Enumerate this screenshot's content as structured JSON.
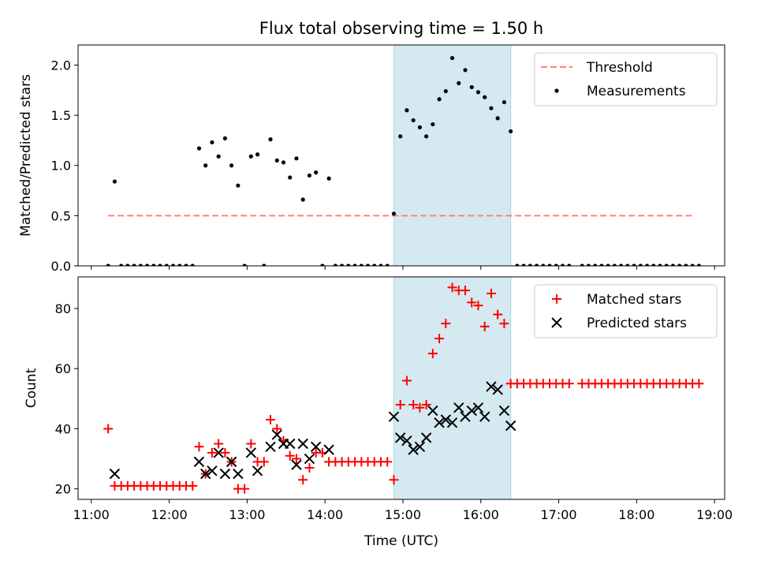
{
  "chart_data": {
    "type": "scatter",
    "title": "Flux total observing time = 1.50 h",
    "xlabel": "Time (UTC)",
    "x_unit": "hours UTC",
    "xlim": [
      "11:00",
      "19:00"
    ],
    "x_ticks": [
      "11:00",
      "12:00",
      "13:00",
      "14:00",
      "15:00",
      "16:00",
      "17:00",
      "18:00",
      "19:00"
    ],
    "shaded_interval": {
      "start": "14:53",
      "end": "16:23",
      "color": "#d4eaf0"
    },
    "panels": [
      {
        "ylabel": "Matched/Predicted stars",
        "ylim": [
          0,
          2.2
        ],
        "y_ticks": [
          "0.0",
          "0.5",
          "1.0",
          "1.5",
          "2.0"
        ],
        "legend": {
          "placement": "upper right",
          "entries": [
            "Threshold",
            "Measurements"
          ]
        },
        "series": [
          {
            "name": "Threshold",
            "kind": "dashed-line",
            "color": "#ff7f7f",
            "x": [
              "11:13",
              "18:43"
            ],
            "y": [
              0.5,
              0.5
            ]
          },
          {
            "name": "Measurements",
            "kind": "dot",
            "color": "#000000",
            "points": [
              [
                "11:13",
                0
              ],
              [
                "11:18",
                0.84
              ],
              [
                "11:23",
                0
              ],
              [
                "11:28",
                0
              ],
              [
                "11:33",
                0
              ],
              [
                "11:38",
                0
              ],
              [
                "11:43",
                0
              ],
              [
                "11:48",
                0
              ],
              [
                "11:53",
                0
              ],
              [
                "11:58",
                0
              ],
              [
                "12:03",
                0
              ],
              [
                "12:08",
                0
              ],
              [
                "12:13",
                0
              ],
              [
                "12:18",
                0
              ],
              [
                "12:23",
                1.17
              ],
              [
                "12:28",
                1.0
              ],
              [
                "12:33",
                1.23
              ],
              [
                "12:38",
                1.09
              ],
              [
                "12:43",
                1.27
              ],
              [
                "12:48",
                1.0
              ],
              [
                "12:53",
                0.8
              ],
              [
                "12:58",
                0
              ],
              [
                "13:03",
                1.09
              ],
              [
                "13:08",
                1.11
              ],
              [
                "13:13",
                0
              ],
              [
                "13:18",
                1.26
              ],
              [
                "13:23",
                1.05
              ],
              [
                "13:28",
                1.03
              ],
              [
                "13:33",
                0.88
              ],
              [
                "13:38",
                1.07
              ],
              [
                "13:43",
                0.66
              ],
              [
                "13:48",
                0.9
              ],
              [
                "13:53",
                0.93
              ],
              [
                "13:58",
                0
              ],
              [
                "14:03",
                0.87
              ],
              [
                "14:08",
                0
              ],
              [
                "14:13",
                0
              ],
              [
                "14:18",
                0
              ],
              [
                "14:23",
                0
              ],
              [
                "14:28",
                0
              ],
              [
                "14:33",
                0
              ],
              [
                "14:38",
                0
              ],
              [
                "14:43",
                0
              ],
              [
                "14:48",
                0
              ],
              [
                "14:53",
                0.52
              ],
              [
                "14:58",
                1.29
              ],
              [
                "15:03",
                1.55
              ],
              [
                "15:08",
                1.45
              ],
              [
                "15:13",
                1.38
              ],
              [
                "15:18",
                1.29
              ],
              [
                "15:23",
                1.41
              ],
              [
                "15:28",
                1.66
              ],
              [
                "15:33",
                1.74
              ],
              [
                "15:38",
                2.07
              ],
              [
                "15:43",
                1.82
              ],
              [
                "15:48",
                1.95
              ],
              [
                "15:53",
                1.78
              ],
              [
                "15:58",
                1.73
              ],
              [
                "16:03",
                1.68
              ],
              [
                "16:08",
                1.57
              ],
              [
                "16:13",
                1.47
              ],
              [
                "16:18",
                1.63
              ],
              [
                "16:23",
                1.34
              ],
              [
                "16:28",
                0
              ],
              [
                "16:33",
                0
              ],
              [
                "16:38",
                0
              ],
              [
                "16:43",
                0
              ],
              [
                "16:48",
                0
              ],
              [
                "16:53",
                0
              ],
              [
                "16:58",
                0
              ],
              [
                "17:03",
                0
              ],
              [
                "17:08",
                0
              ],
              [
                "17:18",
                0
              ],
              [
                "17:23",
                0
              ],
              [
                "17:28",
                0
              ],
              [
                "17:33",
                0
              ],
              [
                "17:38",
                0
              ],
              [
                "17:43",
                0
              ],
              [
                "17:48",
                0
              ],
              [
                "17:53",
                0
              ],
              [
                "17:58",
                0
              ],
              [
                "18:03",
                0
              ],
              [
                "18:08",
                0
              ],
              [
                "18:13",
                0
              ],
              [
                "18:18",
                0
              ],
              [
                "18:23",
                0
              ],
              [
                "18:28",
                0
              ],
              [
                "18:33",
                0
              ],
              [
                "18:38",
                0
              ],
              [
                "18:43",
                0
              ],
              [
                "18:48",
                0
              ]
            ]
          }
        ]
      },
      {
        "ylabel": "Count",
        "ylim": [
          16.5,
          90.5
        ],
        "y_ticks": [
          "20",
          "40",
          "60",
          "80"
        ],
        "legend": {
          "placement": "upper right",
          "entries": [
            "Matched stars",
            "Predicted stars"
          ]
        },
        "series": [
          {
            "name": "Matched stars",
            "kind": "plus",
            "color": "#ff0000",
            "points": [
              [
                "11:13",
                40
              ],
              [
                "11:18",
                21
              ],
              [
                "11:23",
                21
              ],
              [
                "11:28",
                21
              ],
              [
                "11:33",
                21
              ],
              [
                "11:38",
                21
              ],
              [
                "11:43",
                21
              ],
              [
                "11:48",
                21
              ],
              [
                "11:53",
                21
              ],
              [
                "11:58",
                21
              ],
              [
                "12:03",
                21
              ],
              [
                "12:08",
                21
              ],
              [
                "12:13",
                21
              ],
              [
                "12:18",
                21
              ],
              [
                "12:23",
                34
              ],
              [
                "12:28",
                25
              ],
              [
                "12:33",
                32
              ],
              [
                "12:38",
                35
              ],
              [
                "12:43",
                32
              ],
              [
                "12:48",
                29
              ],
              [
                "12:53",
                20
              ],
              [
                "12:58",
                20
              ],
              [
                "13:03",
                35
              ],
              [
                "13:08",
                29
              ],
              [
                "13:13",
                29
              ],
              [
                "13:18",
                43
              ],
              [
                "13:23",
                40
              ],
              [
                "13:28",
                36
              ],
              [
                "13:33",
                31
              ],
              [
                "13:38",
                30
              ],
              [
                "13:43",
                23
              ],
              [
                "13:48",
                27
              ],
              [
                "13:53",
                32
              ],
              [
                "13:58",
                32
              ],
              [
                "14:03",
                29
              ],
              [
                "14:08",
                29
              ],
              [
                "14:13",
                29
              ],
              [
                "14:18",
                29
              ],
              [
                "14:23",
                29
              ],
              [
                "14:28",
                29
              ],
              [
                "14:33",
                29
              ],
              [
                "14:38",
                29
              ],
              [
                "14:43",
                29
              ],
              [
                "14:48",
                29
              ],
              [
                "14:53",
                23
              ],
              [
                "14:58",
                48
              ],
              [
                "15:03",
                56
              ],
              [
                "15:08",
                48
              ],
              [
                "15:13",
                47
              ],
              [
                "15:18",
                48
              ],
              [
                "15:23",
                65
              ],
              [
                "15:28",
                70
              ],
              [
                "15:33",
                75
              ],
              [
                "15:38",
                87
              ],
              [
                "15:43",
                86
              ],
              [
                "15:48",
                86
              ],
              [
                "15:53",
                82
              ],
              [
                "15:58",
                81
              ],
              [
                "16:03",
                74
              ],
              [
                "16:08",
                85
              ],
              [
                "16:13",
                78
              ],
              [
                "16:18",
                75
              ],
              [
                "16:23",
                55
              ],
              [
                "16:28",
                55
              ],
              [
                "16:33",
                55
              ],
              [
                "16:38",
                55
              ],
              [
                "16:43",
                55
              ],
              [
                "16:48",
                55
              ],
              [
                "16:53",
                55
              ],
              [
                "16:58",
                55
              ],
              [
                "17:03",
                55
              ],
              [
                "17:08",
                55
              ],
              [
                "17:18",
                55
              ],
              [
                "17:23",
                55
              ],
              [
                "17:28",
                55
              ],
              [
                "17:33",
                55
              ],
              [
                "17:38",
                55
              ],
              [
                "17:43",
                55
              ],
              [
                "17:48",
                55
              ],
              [
                "17:53",
                55
              ],
              [
                "17:58",
                55
              ],
              [
                "18:03",
                55
              ],
              [
                "18:08",
                55
              ],
              [
                "18:13",
                55
              ],
              [
                "18:18",
                55
              ],
              [
                "18:23",
                55
              ],
              [
                "18:28",
                55
              ],
              [
                "18:33",
                55
              ],
              [
                "18:38",
                55
              ],
              [
                "18:43",
                55
              ],
              [
                "18:48",
                55
              ]
            ]
          },
          {
            "name": "Predicted stars",
            "kind": "x",
            "color": "#000000",
            "points": [
              [
                "11:18",
                25
              ],
              [
                "12:23",
                29
              ],
              [
                "12:28",
                25
              ],
              [
                "12:33",
                26
              ],
              [
                "12:38",
                32
              ],
              [
                "12:43",
                25
              ],
              [
                "12:48",
                29
              ],
              [
                "12:53",
                25
              ],
              [
                "13:03",
                32
              ],
              [
                "13:08",
                26
              ],
              [
                "13:18",
                34
              ],
              [
                "13:23",
                38
              ],
              [
                "13:28",
                35
              ],
              [
                "13:33",
                35
              ],
              [
                "13:38",
                28
              ],
              [
                "13:43",
                35
              ],
              [
                "13:48",
                30
              ],
              [
                "13:53",
                34
              ],
              [
                "14:03",
                33
              ],
              [
                "14:53",
                44
              ],
              [
                "14:58",
                37
              ],
              [
                "15:03",
                36
              ],
              [
                "15:08",
                33
              ],
              [
                "15:13",
                34
              ],
              [
                "15:18",
                37
              ],
              [
                "15:23",
                46
              ],
              [
                "15:28",
                42
              ],
              [
                "15:33",
                43
              ],
              [
                "15:38",
                42
              ],
              [
                "15:43",
                47
              ],
              [
                "15:48",
                44
              ],
              [
                "15:53",
                46
              ],
              [
                "15:58",
                47
              ],
              [
                "16:03",
                44
              ],
              [
                "16:08",
                54
              ],
              [
                "16:13",
                53
              ],
              [
                "16:18",
                46
              ],
              [
                "16:23",
                41
              ]
            ]
          }
        ]
      }
    ]
  }
}
